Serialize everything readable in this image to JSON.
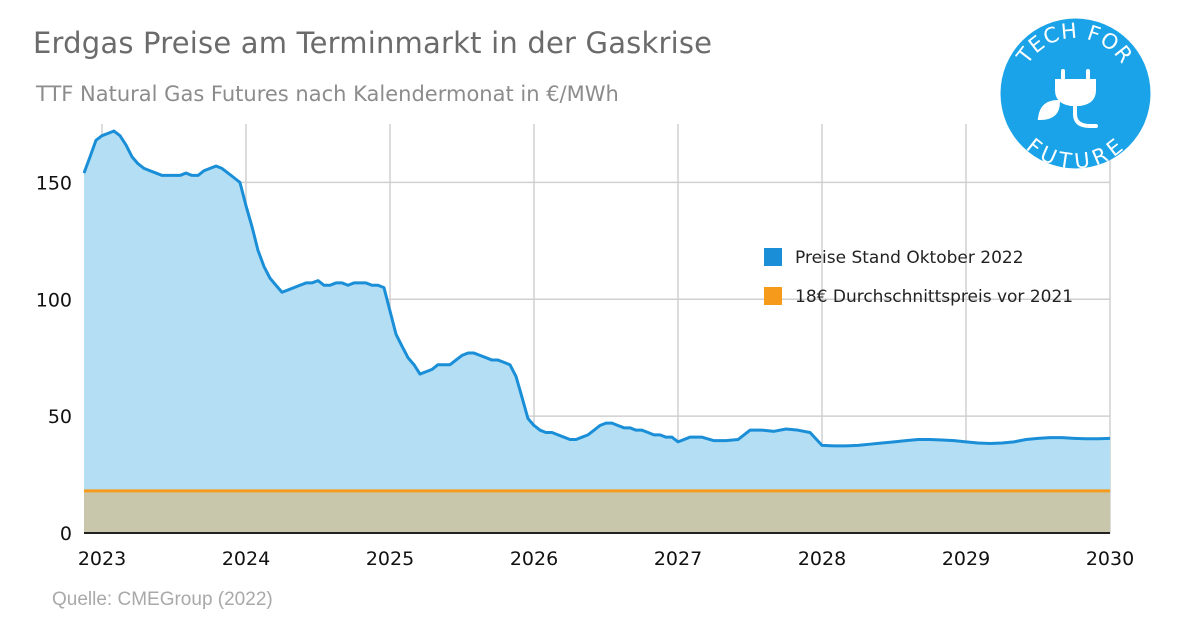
{
  "header": {
    "title": "Erdgas Preise am Terminmarkt in der Gaskrise",
    "subtitle": "TTF Natural Gas Futures nach Kalendermonat in €/MWh"
  },
  "footer": {
    "source": "Quelle: CMEGroup (2022)"
  },
  "logo": {
    "text_top": "TECH FOR",
    "text_bottom": "FUTURE",
    "color": "#1aa3e8",
    "icon": "plug-leaf-icon"
  },
  "colors": {
    "line": "#1a8fd8",
    "area": "#b4def4",
    "baseline": "#f59a1b",
    "baseline_fill": "#c9c7ab",
    "grid": "#d0d0d0"
  },
  "chart_data": {
    "type": "area",
    "title": "",
    "xlabel": "",
    "ylabel": "",
    "xlim": [
      2022.875,
      2030.0
    ],
    "ylim": [
      0,
      175
    ],
    "x_ticks": [
      2023,
      2024,
      2025,
      2026,
      2027,
      2028,
      2029,
      2030
    ],
    "x_tick_labels": [
      "2023",
      "2024",
      "2025",
      "2026",
      "2027",
      "2028",
      "2029",
      "2030"
    ],
    "y_ticks": [
      0,
      50,
      100,
      150
    ],
    "y_tick_labels": [
      "0",
      "50",
      "100",
      "150"
    ],
    "grid": true,
    "legend_position": "right",
    "series": [
      {
        "name": "Preise Stand Oktober 2022",
        "color": "#1a8fd8",
        "x": [
          2022.875,
          2022.917,
          2022.958,
          2023.0,
          2023.042,
          2023.083,
          2023.125,
          2023.167,
          2023.208,
          2023.25,
          2023.292,
          2023.333,
          2023.375,
          2023.417,
          2023.458,
          2023.5,
          2023.542,
          2023.583,
          2023.625,
          2023.667,
          2023.708,
          2023.75,
          2023.792,
          2023.833,
          2023.875,
          2023.917,
          2023.958,
          2024.0,
          2024.042,
          2024.083,
          2024.125,
          2024.167,
          2024.208,
          2024.25,
          2024.292,
          2024.333,
          2024.375,
          2024.417,
          2024.458,
          2024.5,
          2024.542,
          2024.583,
          2024.625,
          2024.667,
          2024.708,
          2024.75,
          2024.792,
          2024.833,
          2024.875,
          2024.917,
          2024.958,
          2025.0,
          2025.042,
          2025.083,
          2025.125,
          2025.167,
          2025.208,
          2025.25,
          2025.292,
          2025.333,
          2025.375,
          2025.417,
          2025.458,
          2025.5,
          2025.542,
          2025.583,
          2025.625,
          2025.667,
          2025.708,
          2025.75,
          2025.792,
          2025.833,
          2025.875,
          2025.917,
          2025.958,
          2026.0,
          2026.042,
          2026.083,
          2026.125,
          2026.167,
          2026.208,
          2026.25,
          2026.292,
          2026.333,
          2026.375,
          2026.417,
          2026.458,
          2026.5,
          2026.542,
          2026.583,
          2026.625,
          2026.667,
          2026.708,
          2026.75,
          2026.792,
          2026.833,
          2026.875,
          2026.917,
          2026.958,
          2027.0,
          2027.083,
          2027.167,
          2027.25,
          2027.333,
          2027.417,
          2027.5,
          2027.583,
          2027.667,
          2027.75,
          2027.833,
          2027.917,
          2028.0,
          2028.083,
          2028.167,
          2028.25,
          2028.333,
          2028.417,
          2028.5,
          2028.583,
          2028.667,
          2028.75,
          2028.833,
          2028.917,
          2029.0,
          2029.083,
          2029.167,
          2029.25,
          2029.333,
          2029.417,
          2029.5,
          2029.583,
          2029.667,
          2029.75,
          2029.833,
          2029.917,
          2030.0
        ],
        "values": [
          154,
          161,
          168,
          170,
          171,
          172,
          170,
          166,
          161,
          158,
          156,
          155,
          154,
          153,
          153,
          153,
          153,
          154,
          153,
          153,
          155,
          156,
          157,
          156,
          154,
          152,
          150,
          140,
          131,
          121,
          114,
          109,
          106,
          103,
          104,
          105,
          106,
          107,
          107,
          108,
          106,
          106,
          107,
          107,
          106,
          107,
          107,
          107,
          106,
          106,
          105,
          95,
          85,
          80,
          75,
          72,
          68,
          69,
          70,
          72,
          72,
          72,
          74,
          76,
          77,
          77,
          76,
          75,
          74,
          74,
          73,
          72,
          67,
          58,
          49,
          46,
          44,
          43,
          43,
          42,
          41,
          40,
          40,
          41,
          42,
          44,
          46,
          47,
          47,
          46,
          45,
          45,
          44,
          44,
          43,
          42,
          42,
          41,
          41,
          39,
          41,
          41,
          39.5,
          39.5,
          40,
          44,
          44,
          43.5,
          44.5,
          44,
          43,
          37.5,
          37.3,
          37.3,
          37.5,
          38,
          38.5,
          39,
          39.5,
          40,
          40,
          39.8,
          39.5,
          39,
          38.5,
          38.3,
          38.5,
          39,
          40,
          40.5,
          40.8,
          40.8,
          40.5,
          40.3,
          40.3,
          40.5
        ]
      },
      {
        "name": "18€ Durchschnittspreis vor 2021",
        "color": "#f59a1b",
        "x": [
          2022.875,
          2030.0
        ],
        "values": [
          18,
          18
        ]
      }
    ]
  }
}
